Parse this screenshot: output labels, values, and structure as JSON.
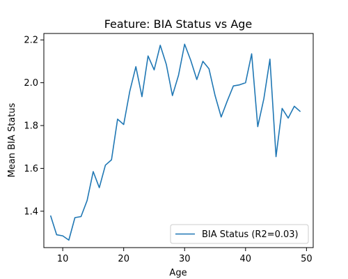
{
  "chart_data": {
    "type": "line",
    "title": "Feature: BIA Status vs Age",
    "xlabel": "Age",
    "ylabel": "Mean BIA Status",
    "xlim": [
      6.9,
      51.1
    ],
    "ylim": [
      1.23,
      2.23
    ],
    "x_ticks": [
      10,
      20,
      30,
      40,
      50
    ],
    "y_ticks": [
      1.4,
      1.6,
      1.8,
      2.0,
      2.2
    ],
    "x_tick_labels": [
      "10",
      "20",
      "30",
      "40",
      "50"
    ],
    "y_tick_labels": [
      "1.4",
      "1.6",
      "1.8",
      "2.0",
      "2.2"
    ],
    "grid": false,
    "legend_position": "bottom-right",
    "series": [
      {
        "name": "BIA Status (R2=0.03)",
        "color": "#1f77b4",
        "x": [
          8,
          9,
          10,
          11,
          12,
          13,
          14,
          15,
          16,
          17,
          18,
          19,
          20,
          21,
          22,
          23,
          24,
          25,
          26,
          27,
          28,
          29,
          30,
          31,
          32,
          33,
          34,
          35,
          36,
          37,
          38,
          39,
          40,
          41,
          42,
          43,
          44,
          45,
          46,
          47,
          48,
          49
        ],
        "y": [
          1.38,
          1.29,
          1.285,
          1.265,
          1.37,
          1.375,
          1.45,
          1.585,
          1.51,
          1.615,
          1.64,
          1.83,
          1.805,
          1.96,
          2.075,
          1.935,
          2.125,
          2.06,
          2.175,
          2.085,
          1.94,
          2.035,
          2.18,
          2.105,
          2.015,
          2.1,
          2.065,
          1.94,
          1.84,
          1.915,
          1.985,
          1.99,
          2.0,
          2.135,
          1.795,
          1.925,
          2.11,
          1.655,
          1.88,
          1.835,
          1.89,
          1.865
        ]
      }
    ]
  }
}
